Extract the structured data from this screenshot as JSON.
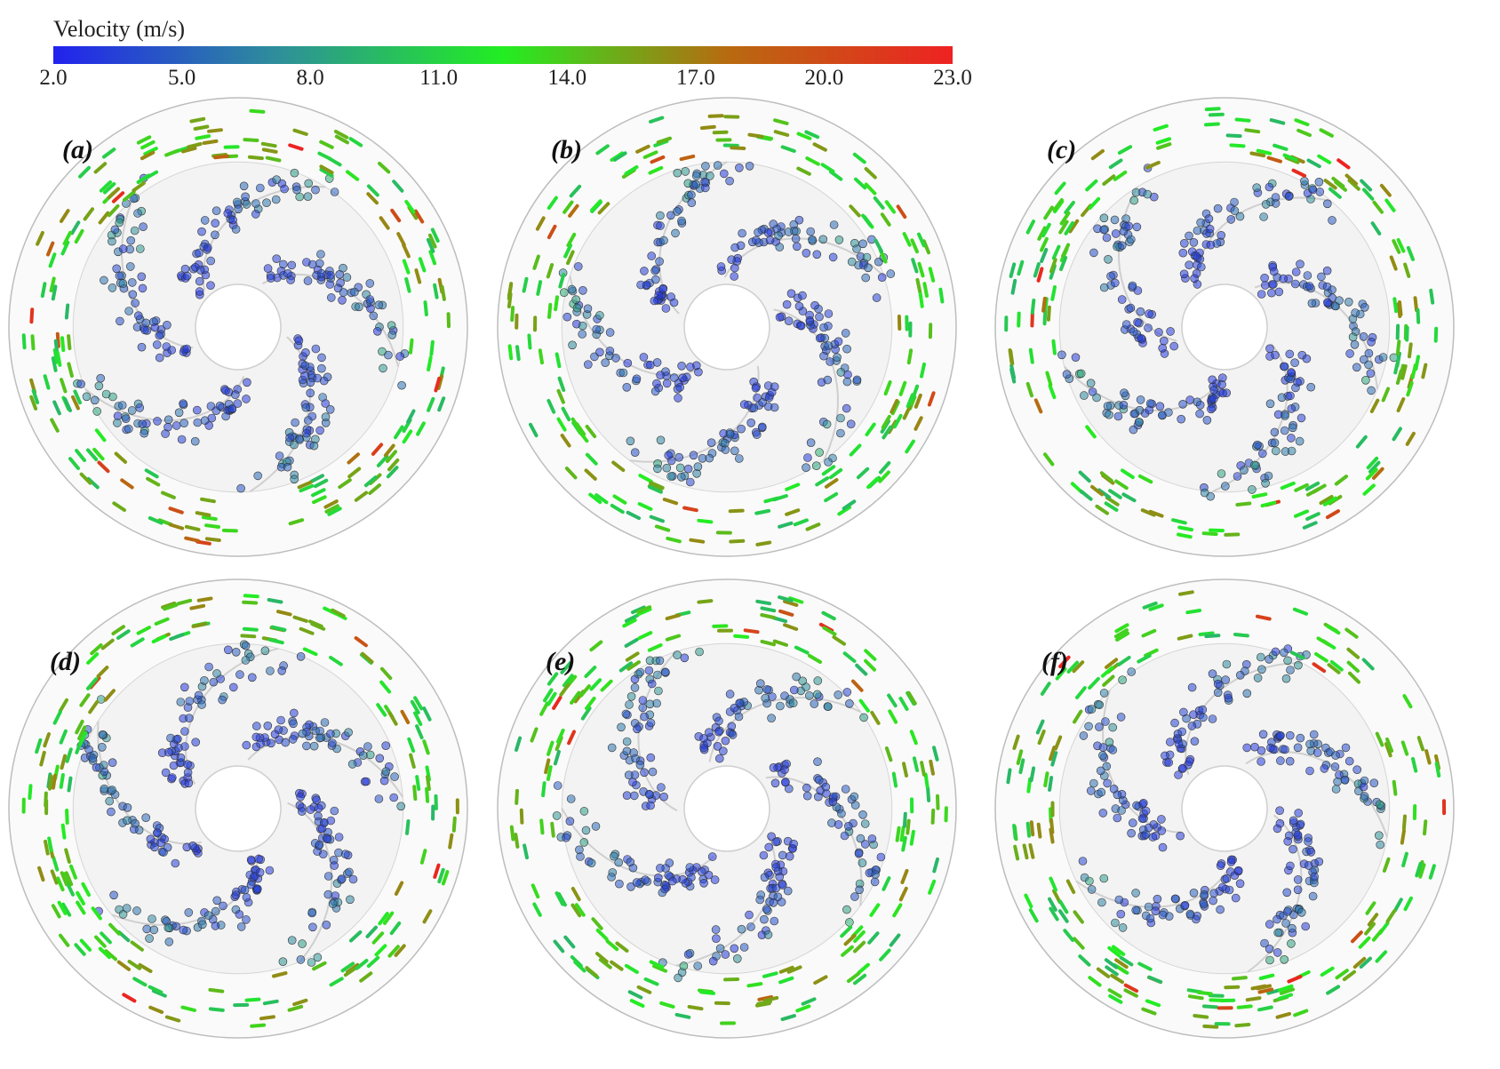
{
  "legend": {
    "title": "Velocity (m/s)",
    "min": 2.0,
    "max": 23.0,
    "ticks": [
      "2.0",
      "5.0",
      "8.0",
      "11.0",
      "14.0",
      "17.0",
      "20.0",
      "23.0"
    ],
    "colors": [
      "#2222ee",
      "#2e8f9a",
      "#22ee22",
      "#b86a10",
      "#ee2222"
    ]
  },
  "panels": [
    {
      "label": "(a)"
    },
    {
      "label": "(b)"
    },
    {
      "label": "(c)"
    },
    {
      "label": "(d)"
    },
    {
      "label": "(e)"
    },
    {
      "label": "(f)"
    }
  ]
}
